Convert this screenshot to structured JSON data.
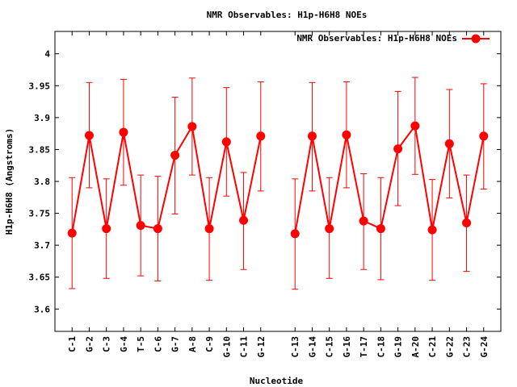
{
  "chart_data": {
    "type": "line",
    "title": "NMR Observables: H1p-H6H8 NOEs",
    "xlabel": "Nucleotide",
    "ylabel": "H1p-H6H8 (Angstroms)",
    "ylim": [
      3.565,
      4.035
    ],
    "yticks": [
      3.6,
      3.65,
      3.7,
      3.75,
      3.8,
      3.85,
      3.9,
      3.95,
      4
    ],
    "ytick_labels": [
      "3.6",
      "3.65",
      "3.7",
      "3.75",
      "3.8",
      "3.85",
      "3.9",
      "3.95",
      "4"
    ],
    "grid": false,
    "legend_position": "top-right",
    "color": "#ff0000",
    "series": [
      {
        "name": "NMR Observables: H1p-H6H8 NOEs",
        "segments": [
          {
            "categories": [
              "C-1",
              "G-2",
              "C-3",
              "G-4",
              "T-5",
              "C-6",
              "G-7",
              "A-8",
              "C-9",
              "G-10",
              "C-11",
              "G-12"
            ],
            "positions": [
              1,
              2,
              3,
              4,
              5,
              6,
              7,
              8,
              9,
              10,
              11,
              12
            ],
            "values": [
              3.719,
              3.872,
              3.726,
              3.877,
              3.731,
              3.726,
              3.841,
              3.886,
              3.726,
              3.862,
              3.739,
              3.871
            ],
            "err_low": [
              3.632,
              3.79,
              3.648,
              3.794,
              3.652,
              3.644,
              3.749,
              3.81,
              3.645,
              3.777,
              3.662,
              3.785
            ],
            "err_high": [
              3.806,
              3.955,
              3.804,
              3.96,
              3.81,
              3.808,
              3.932,
              3.962,
              3.806,
              3.947,
              3.814,
              3.956
            ]
          },
          {
            "categories": [
              "C-13",
              "G-14",
              "C-15",
              "G-16",
              "T-17",
              "C-18",
              "G-19",
              "A-20",
              "C-21",
              "G-22",
              "C-23",
              "G-24"
            ],
            "positions": [
              14,
              15,
              16,
              17,
              18,
              19,
              20,
              21,
              22,
              23,
              24,
              25
            ],
            "values": [
              3.718,
              3.871,
              3.726,
              3.873,
              3.738,
              3.726,
              3.851,
              3.887,
              3.724,
              3.859,
              3.735,
              3.871
            ],
            "err_low": [
              3.631,
              3.785,
              3.648,
              3.79,
              3.662,
              3.646,
              3.762,
              3.811,
              3.645,
              3.774,
              3.659,
              3.788
            ],
            "err_high": [
              3.804,
              3.955,
              3.806,
              3.956,
              3.812,
              3.806,
              3.941,
              3.963,
              3.803,
              3.944,
              3.81,
              3.953
            ]
          }
        ]
      }
    ]
  }
}
